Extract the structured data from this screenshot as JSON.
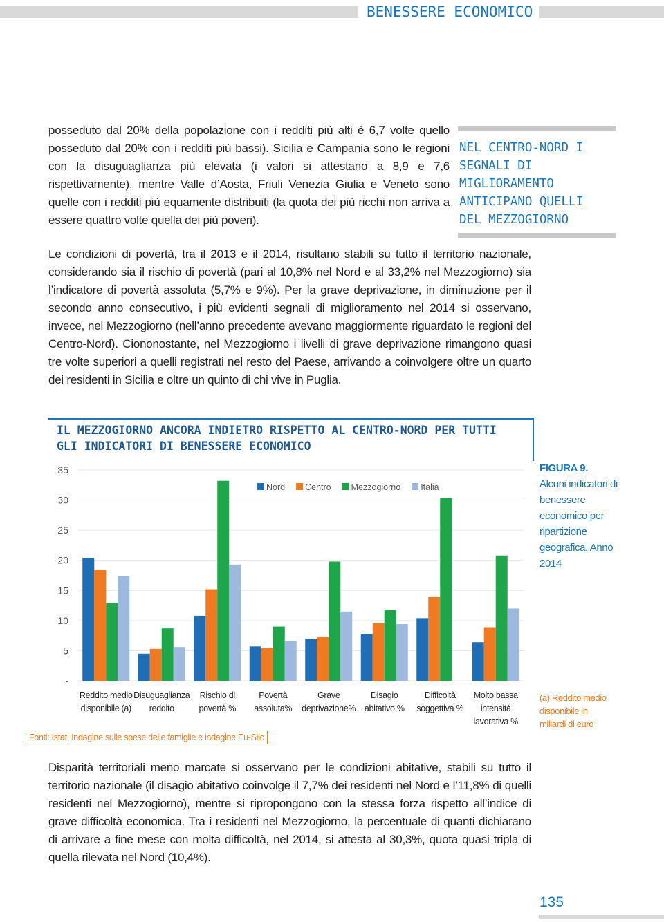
{
  "header": {
    "section": "BENESSERE ECONOMICO"
  },
  "paragraphs": [
    "posseduto dal 20% della popolazione con i redditi più alti è 6,7 volte quello posseduto dal 20% con i redditi più bassi). Sicilia e Campania sono le regioni con la disuguaglianza più elevata (i valori si attestano a 8,9 e 7,6 rispettivamente), mentre Valle d’Aosta, Friuli Venezia Giulia e Veneto sono quelle con i redditi più equamente distribuiti (la quota dei più ricchi non arriva a essere quattro volte quella dei più poveri).",
    "Le condizioni di povertà, tra il 2013 e il 2014, risultano stabili su tutto il territorio nazionale, considerando sia il rischio di povertà (pari al 10,8% nel Nord e al 33,2% nel Mezzogiorno) sia l’indicatore di povertà assoluta (5,7% e 9%). Per la grave deprivazione, in diminuzione per il secondo anno consecutivo, i più evidenti segnali di miglioramento nel 2014 si osservano, invece, nel Mezzogiorno (nell’anno precedente avevano maggiormente riguardato le regioni del Centro-Nord). Ciononostante, nel Mezzogiorno i livelli di grave deprivazione rimangono quasi tre volte superiori a quelli registrati nel resto del Paese, arrivando a coinvolgere oltre un quarto dei residenti in Sicilia e oltre un quinto di chi vive in Puglia.",
    "Disparità territoriali meno marcate si osservano per le condizioni abitative, stabili su tutto il territorio nazionale (il disagio abitativo coinvolge il 7,7% dei residenti nel Nord e l’11,8% di quelli residenti nel Mezzogiorno), mentre si ripropongono con la stessa forza rispetto all’indice di grave difficoltà economica. Tra i residenti nel Mezzogiorno, la percentuale di quanti dichiarano di arrivare a fine mese con molta difficoltà, nel 2014, si attesta al 30,3%, quota quasi tripla di quella rilevata nel Nord (10,4%)."
  ],
  "sidebar": {
    "quote": "NEL CENTRO-NORD I SEGNALI DI MIGLIORAMENTO ANTICIPANO QUELLI DEL MEZZOGIORNO"
  },
  "chart_data": {
    "type": "bar",
    "title": "IL MEZZOGIORNO ANCORA INDIETRO RISPETTO AL CENTRO-NORD PER TUTTI GLI INDICATORI DI BENESSERE ECONOMICO",
    "categories": [
      "Reddito medio\ndisponibile (a)",
      "Disuguaglianza\nreddito",
      "Rischio di\npovertà %",
      "Povertà\nassoluta%",
      "Grave\ndeprivazione%",
      "Disagio\nabitativo %",
      "Difficoltà\nsoggettiva %",
      "Molto bassa\nintensità\nlavorativa %"
    ],
    "series": [
      {
        "name": "Nord",
        "color": "#1f6db4",
        "values": [
          20.4,
          4.5,
          10.8,
          5.7,
          7.0,
          7.7,
          10.4,
          6.4
        ]
      },
      {
        "name": "Centro",
        "color": "#f07a22",
        "values": [
          18.4,
          5.3,
          15.2,
          5.4,
          7.3,
          9.6,
          13.9,
          8.9
        ]
      },
      {
        "name": "Mezzogiorno",
        "color": "#1fa54a",
        "values": [
          12.9,
          8.7,
          33.2,
          9.0,
          19.8,
          11.8,
          30.3,
          20.8
        ]
      },
      {
        "name": "Italia",
        "color": "#9db9dd",
        "values": [
          17.4,
          5.6,
          19.3,
          6.6,
          11.5,
          9.4,
          null,
          12.0
        ]
      }
    ],
    "ylim": [
      0,
      35
    ],
    "yticks": [
      {
        "value": 0,
        "label": "-"
      },
      5,
      10,
      15,
      20,
      25,
      30,
      35
    ],
    "grid": true,
    "source": "Fonti: Istat, Indagine sulle spese delle famiglie e indagine Eu-Silc",
    "figure_label": "FIGURA 9.",
    "caption": "Alcuni indicatori di benessere economico per ripartizione geografica. Anno 2014",
    "note": "(a) Reddito medio disponibile in miliardi di euro"
  },
  "footer": {
    "page_number": "135"
  }
}
